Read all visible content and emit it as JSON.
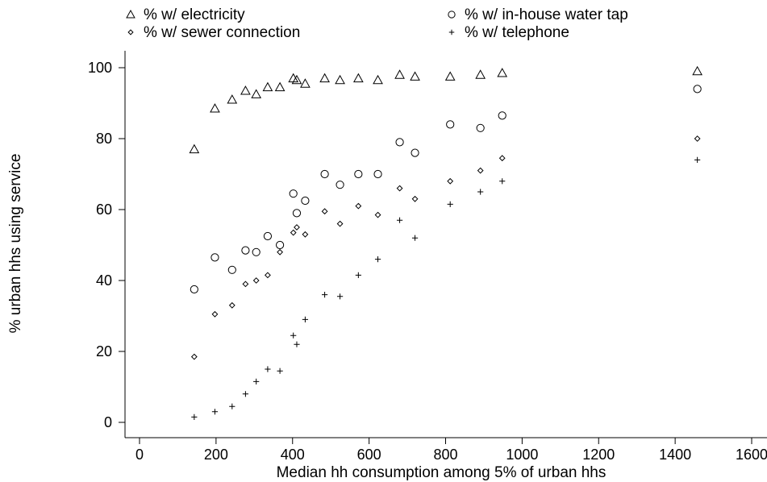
{
  "chart_data": {
    "type": "scatter",
    "title": "",
    "xlabel": "Median hh consumption among 5% of urban hhs",
    "ylabel": "% urban hhs using service",
    "xlim": [
      0,
      1600
    ],
    "ylim": [
      0,
      100
    ],
    "xticks": [
      "0",
      "200",
      "400",
      "600",
      "800",
      "1000",
      "1200",
      "1400",
      "1600"
    ],
    "yticks": [
      "0",
      "20",
      "40",
      "60",
      "80",
      "100"
    ],
    "grid": false,
    "legend_position": "top",
    "series": [
      {
        "name": "% w/ electricity",
        "marker": "triangle",
        "x": [
          143,
          197,
          242,
          277,
          305,
          335,
          367,
          402,
          411,
          433,
          484,
          524,
          572,
          623,
          680,
          720,
          812,
          891,
          948,
          1458
        ],
        "y": [
          77,
          88.5,
          91,
          93.5,
          92.5,
          94.5,
          94.5,
          97,
          96.5,
          95.5,
          97,
          96.5,
          97,
          96.5,
          98,
          97.5,
          97.5,
          98,
          98.5,
          99
        ]
      },
      {
        "name": "% w/ in-house water tap",
        "marker": "circle",
        "x": [
          143,
          197,
          242,
          277,
          305,
          335,
          367,
          402,
          411,
          433,
          484,
          524,
          572,
          623,
          680,
          720,
          812,
          891,
          948,
          1458
        ],
        "y": [
          37.5,
          46.5,
          43,
          48.5,
          48,
          52.5,
          50,
          64.5,
          59,
          62.5,
          70,
          67,
          70,
          70,
          79,
          76,
          84,
          83,
          86.5,
          94
        ]
      },
      {
        "name": "% w/ sewer connection",
        "marker": "diamond",
        "x": [
          143,
          197,
          242,
          277,
          305,
          335,
          367,
          402,
          411,
          433,
          484,
          524,
          572,
          623,
          680,
          720,
          812,
          891,
          948,
          1458
        ],
        "y": [
          18.5,
          30.5,
          33,
          39,
          40,
          41.5,
          48,
          53.5,
          55,
          53,
          59.5,
          56,
          61,
          58.5,
          66,
          63,
          68,
          71,
          74.5,
          80
        ]
      },
      {
        "name": "% w/ telephone",
        "marker": "plus",
        "x": [
          143,
          197,
          242,
          277,
          305,
          335,
          367,
          402,
          411,
          433,
          484,
          524,
          572,
          623,
          680,
          720,
          812,
          891,
          948,
          1458
        ],
        "y": [
          1.5,
          3,
          4.5,
          8,
          11.5,
          15,
          14.5,
          24.5,
          22,
          29,
          36,
          35.5,
          41.5,
          46,
          57,
          52,
          61.5,
          65,
          68,
          74
        ]
      }
    ]
  }
}
